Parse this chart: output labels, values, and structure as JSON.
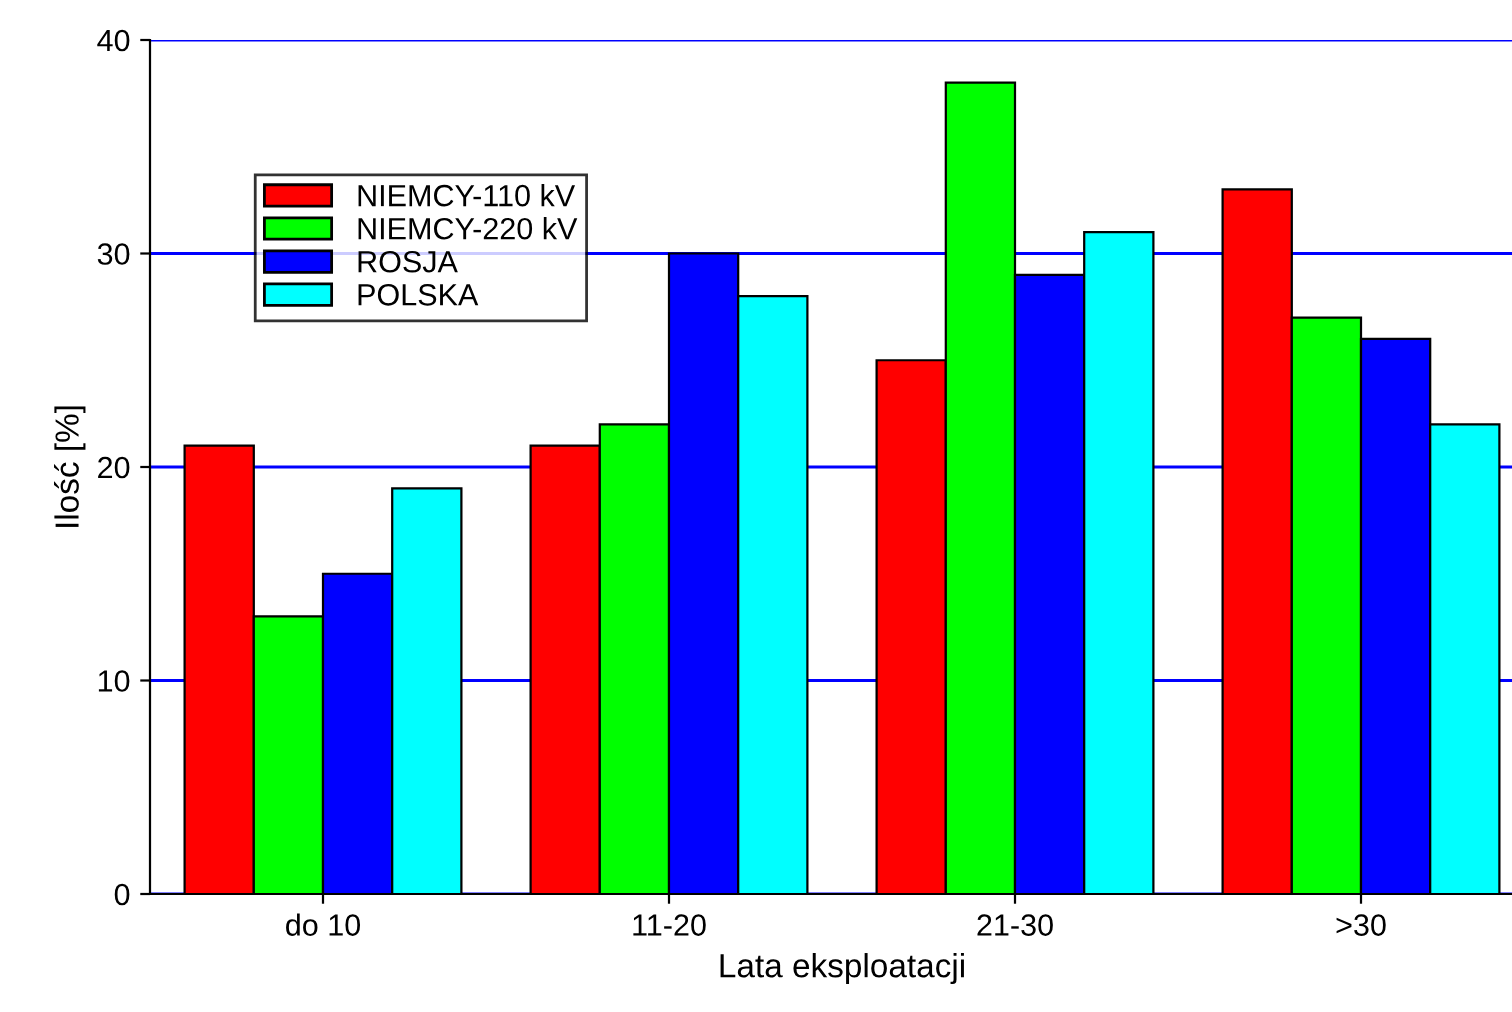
{
  "chart_data": {
    "type": "bar",
    "xlabel": "Lata eksploatacji",
    "ylabel": "Ilość [%]",
    "categories": [
      "do 10",
      "11-20",
      "21-30",
      ">30"
    ],
    "series": [
      {
        "name": "NIEMCY-110 kV",
        "color": "#ff0000",
        "values": [
          21,
          21,
          25,
          33
        ]
      },
      {
        "name": "NIEMCY-220 kV",
        "color": "#00ff00",
        "values": [
          13,
          22,
          38,
          27
        ]
      },
      {
        "name": "ROSJA",
        "color": "#0000ff",
        "values": [
          15,
          30,
          29,
          26
        ]
      },
      {
        "name": "POLSKA",
        "color": "#00ffff",
        "values": [
          19,
          28,
          31,
          22
        ]
      }
    ],
    "ylim": [
      0,
      40
    ],
    "yticks": [
      0,
      10,
      20,
      30,
      40
    ],
    "grid": "y",
    "legend": "top left"
  }
}
